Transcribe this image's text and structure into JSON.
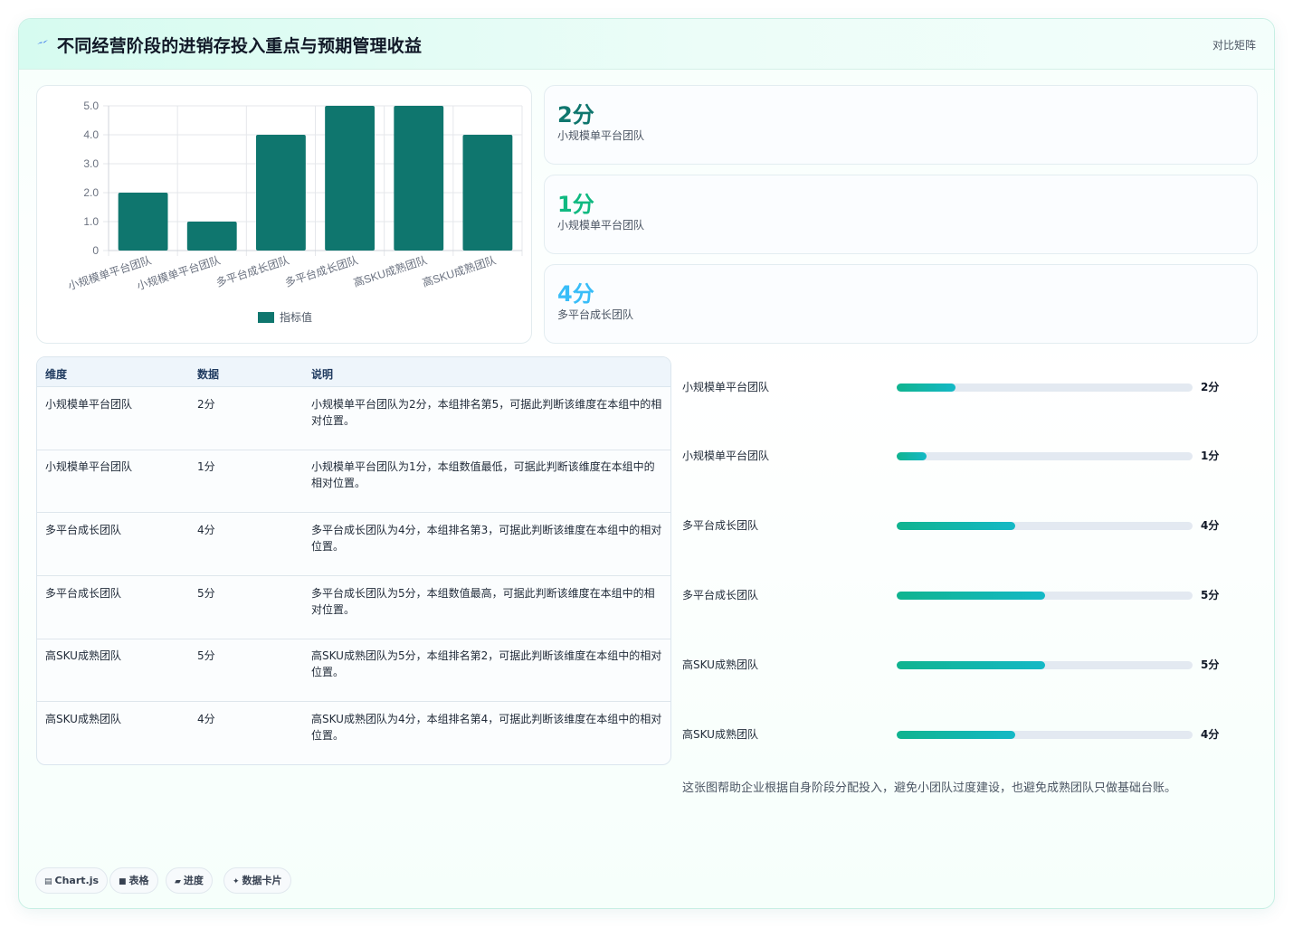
{
  "header": {
    "title": "不同经营阶段的进销存投入重点与预期管理收益",
    "matrix_label": "对比矩阵"
  },
  "colors": {
    "bar": "#0f766e",
    "stat1": "#0f766e",
    "stat2": "#10b981",
    "stat3": "#38bdf8",
    "progress_start": "#10b48f",
    "progress_end": "#14b8c6"
  },
  "chart_data": {
    "type": "bar",
    "categories": [
      "小规模单平台团队",
      "小规模单平台团队",
      "多平台成长团队",
      "多平台成长团队",
      "高SKU成熟团队",
      "高SKU成熟团队"
    ],
    "series": [
      {
        "name": "指标值",
        "values": [
          2,
          1,
          4,
          5,
          5,
          4
        ]
      }
    ],
    "ylim": [
      0,
      5
    ],
    "yticks": [
      "0",
      "1.0",
      "2.0",
      "3.0",
      "4.0",
      "5.0"
    ],
    "grid": true,
    "legend": "bottom"
  },
  "stats": [
    {
      "value": "2分",
      "label": "小规模单平台团队"
    },
    {
      "value": "1分",
      "label": "小规模单平台团队"
    },
    {
      "value": "4分",
      "label": "多平台成长团队"
    }
  ],
  "table": {
    "headers": [
      "维度",
      "数据",
      "说明"
    ],
    "rows": [
      {
        "dim": "小规模单平台团队",
        "data": "2分",
        "desc": "小规模单平台团队为2分，本组排名第5，可据此判断该维度在本组中的相对位置。"
      },
      {
        "dim": "小规模单平台团队",
        "data": "1分",
        "desc": "小规模单平台团队为1分，本组数值最低，可据此判断该维度在本组中的相对位置。"
      },
      {
        "dim": "多平台成长团队",
        "data": "4分",
        "desc": "多平台成长团队为4分，本组排名第3，可据此判断该维度在本组中的相对位置。"
      },
      {
        "dim": "多平台成长团队",
        "data": "5分",
        "desc": "多平台成长团队为5分，本组数值最高，可据此判断该维度在本组中的相对位置。"
      },
      {
        "dim": "高SKU成熟团队",
        "data": "5分",
        "desc": "高SKU成熟团队为5分，本组排名第2，可据此判断该维度在本组中的相对位置。"
      },
      {
        "dim": "高SKU成熟团队",
        "data": "4分",
        "desc": "高SKU成熟团队为4分，本组排名第4，可据此判断该维度在本组中的相对位置。"
      }
    ]
  },
  "progress": [
    {
      "label": "小规模单平台团队",
      "value": "2分",
      "fraction": 0.2
    },
    {
      "label": "小规模单平台团队",
      "value": "1分",
      "fraction": 0.1
    },
    {
      "label": "多平台成长团队",
      "value": "4分",
      "fraction": 0.4
    },
    {
      "label": "多平台成长团队",
      "value": "5分",
      "fraction": 0.5
    },
    {
      "label": "高SKU成熟团队",
      "value": "5分",
      "fraction": 0.5
    },
    {
      "label": "高SKU成熟团队",
      "value": "4分",
      "fraction": 0.4
    }
  ],
  "note": "这张图帮助企业根据自身阶段分配投入，避免小团队过度建设，也避免成熟团队只做基础台账。",
  "tags": [
    {
      "icon": "chart-icon",
      "label": "Chart.js"
    },
    {
      "icon": "table-icon",
      "label": "表格"
    },
    {
      "icon": "progress-icon",
      "label": "进度"
    },
    {
      "icon": "card-icon",
      "label": "数据卡片"
    }
  ]
}
